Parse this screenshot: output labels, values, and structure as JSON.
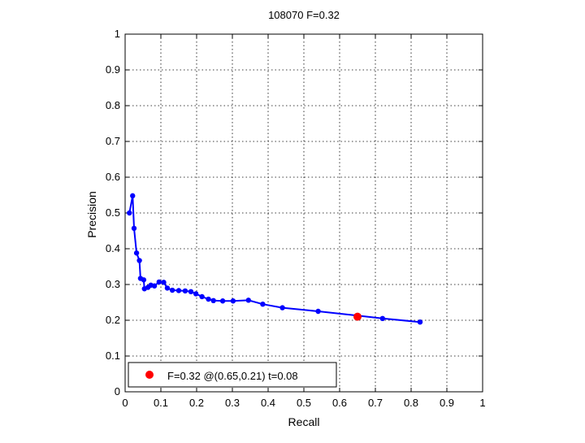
{
  "chart_data": {
    "type": "line",
    "title": "108070 F=0.32",
    "xlabel": "Recall",
    "ylabel": "Precision",
    "xlim": [
      0,
      1
    ],
    "ylim": [
      0,
      1
    ],
    "xticks": [
      "0",
      "0.1",
      "0.2",
      "0.3",
      "0.4",
      "0.5",
      "0.6",
      "0.7",
      "0.8",
      "0.9",
      "1"
    ],
    "yticks": [
      "0",
      "0.1",
      "0.2",
      "0.3",
      "0.4",
      "0.5",
      "0.6",
      "0.7",
      "0.8",
      "0.9",
      "1"
    ],
    "grid": true,
    "series": [
      {
        "color": "#0000ff",
        "points": [
          [
            0.012,
            0.5
          ],
          [
            0.021,
            0.548
          ],
          [
            0.025,
            0.457
          ],
          [
            0.032,
            0.388
          ],
          [
            0.04,
            0.367
          ],
          [
            0.043,
            0.317
          ],
          [
            0.052,
            0.313
          ],
          [
            0.054,
            0.288
          ],
          [
            0.064,
            0.292
          ],
          [
            0.072,
            0.298
          ],
          [
            0.082,
            0.296
          ],
          [
            0.095,
            0.307
          ],
          [
            0.108,
            0.306
          ],
          [
            0.118,
            0.29
          ],
          [
            0.132,
            0.284
          ],
          [
            0.15,
            0.283
          ],
          [
            0.168,
            0.282
          ],
          [
            0.184,
            0.28
          ],
          [
            0.198,
            0.274
          ],
          [
            0.215,
            0.266
          ],
          [
            0.233,
            0.259
          ],
          [
            0.247,
            0.255
          ],
          [
            0.273,
            0.254
          ],
          [
            0.302,
            0.254
          ],
          [
            0.345,
            0.256
          ],
          [
            0.385,
            0.245
          ],
          [
            0.44,
            0.235
          ],
          [
            0.54,
            0.225
          ],
          [
            0.65,
            0.213
          ],
          [
            0.72,
            0.205
          ],
          [
            0.825,
            0.195
          ]
        ]
      }
    ],
    "best_point": {
      "x": 0.65,
      "y": 0.21,
      "color": "#ff0000"
    },
    "legend": {
      "label": "F=0.32 @(0.65,0.21) t=0.08",
      "placement": "bottom-left"
    }
  }
}
